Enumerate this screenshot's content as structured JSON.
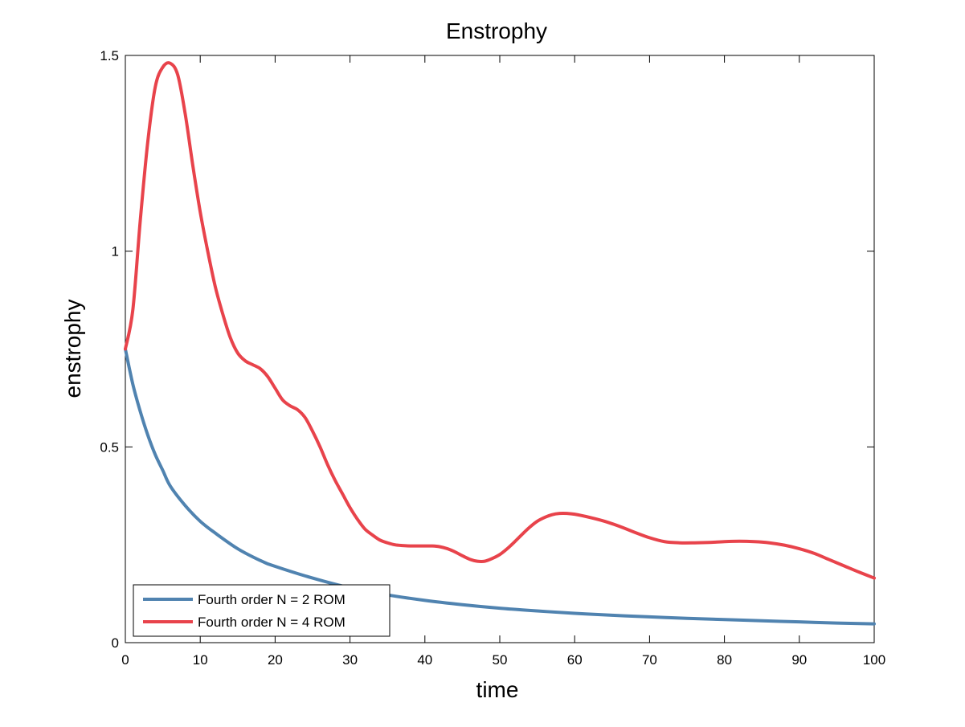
{
  "chart_data": {
    "type": "line",
    "title": "Enstrophy",
    "xlabel": "time",
    "ylabel": "enstrophy",
    "xlim": [
      0,
      100
    ],
    "ylim": [
      0,
      1.5
    ],
    "xticks": [
      "0",
      "10",
      "20",
      "30",
      "40",
      "50",
      "60",
      "70",
      "80",
      "90",
      "100"
    ],
    "yticks": [
      "0",
      "0.5",
      "1",
      "1.5"
    ],
    "grid": false,
    "legend_position": "bottom-left",
    "series": [
      {
        "name": "Fourth order N = 2 ROM",
        "color": "#5083b0",
        "x": [
          0,
          1,
          2,
          3,
          4,
          5,
          6,
          8,
          10,
          12,
          15,
          18,
          20,
          25,
          30,
          35,
          40,
          45,
          50,
          55,
          60,
          65,
          70,
          75,
          80,
          85,
          90,
          95,
          100
        ],
        "y": [
          0.75,
          0.66,
          0.59,
          0.53,
          0.48,
          0.44,
          0.4,
          0.35,
          0.31,
          0.28,
          0.24,
          0.21,
          0.195,
          0.165,
          0.14,
          0.122,
          0.108,
          0.097,
          0.088,
          0.081,
          0.075,
          0.07,
          0.066,
          0.062,
          0.059,
          0.056,
          0.053,
          0.05,
          0.048
        ]
      },
      {
        "name": "Fourth order N = 4 ROM",
        "color": "#e8434b",
        "x": [
          0,
          1,
          2,
          3,
          4,
          5,
          6,
          7,
          8,
          9,
          10,
          11,
          12,
          13,
          14,
          15,
          16,
          17,
          18,
          19,
          20,
          21,
          22,
          23,
          24,
          25,
          26,
          27,
          28,
          29,
          30,
          31,
          32,
          33,
          34,
          35,
          36,
          37,
          38,
          39,
          40,
          41,
          42,
          43,
          44,
          45,
          46,
          47,
          48,
          49,
          50,
          51,
          52,
          53,
          54,
          55,
          56,
          57,
          58,
          59,
          60,
          62,
          64,
          66,
          68,
          70,
          72,
          74,
          76,
          78,
          80,
          82,
          84,
          86,
          88,
          90,
          92,
          94,
          96,
          98,
          100
        ],
        "y": [
          0.75,
          0.85,
          1.08,
          1.28,
          1.42,
          1.47,
          1.48,
          1.45,
          1.35,
          1.22,
          1.1,
          1.0,
          0.91,
          0.84,
          0.78,
          0.74,
          0.72,
          0.71,
          0.7,
          0.68,
          0.65,
          0.62,
          0.605,
          0.595,
          0.575,
          0.54,
          0.5,
          0.455,
          0.415,
          0.38,
          0.345,
          0.315,
          0.29,
          0.275,
          0.262,
          0.255,
          0.25,
          0.248,
          0.247,
          0.247,
          0.247,
          0.247,
          0.245,
          0.24,
          0.232,
          0.222,
          0.213,
          0.208,
          0.208,
          0.215,
          0.225,
          0.24,
          0.258,
          0.277,
          0.295,
          0.31,
          0.32,
          0.327,
          0.33,
          0.33,
          0.328,
          0.32,
          0.31,
          0.297,
          0.282,
          0.268,
          0.258,
          0.255,
          0.255,
          0.256,
          0.258,
          0.259,
          0.258,
          0.255,
          0.249,
          0.24,
          0.228,
          0.212,
          0.196,
          0.18,
          0.165
        ]
      }
    ]
  }
}
